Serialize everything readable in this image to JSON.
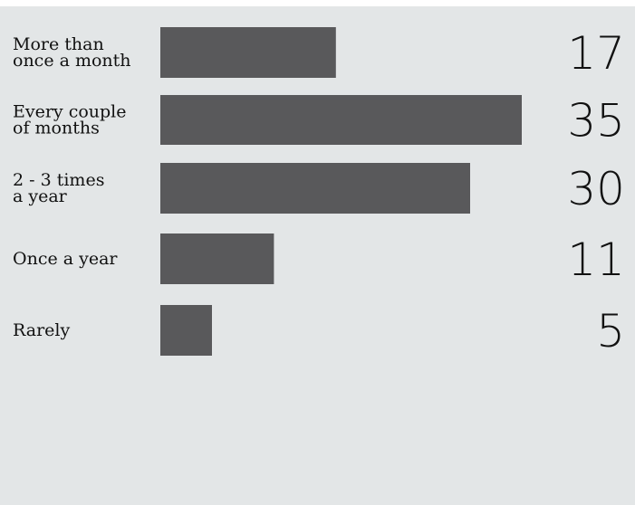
{
  "chart_data": {
    "type": "bar",
    "orientation": "horizontal",
    "title": "",
    "xlabel": "",
    "ylabel": "",
    "categories": [
      [
        "More than",
        "once a month"
      ],
      [
        "Every couple",
        "of months"
      ],
      [
        "2 - 3 times",
        "a year"
      ],
      [
        "Once a year"
      ],
      [
        "Rarely"
      ]
    ],
    "values": [
      17,
      35,
      30,
      11,
      5
    ],
    "xlim": [
      0,
      35
    ],
    "grid": false,
    "legend": "none",
    "bar_color": "#59595b",
    "background_color": "#e3e6e7"
  }
}
